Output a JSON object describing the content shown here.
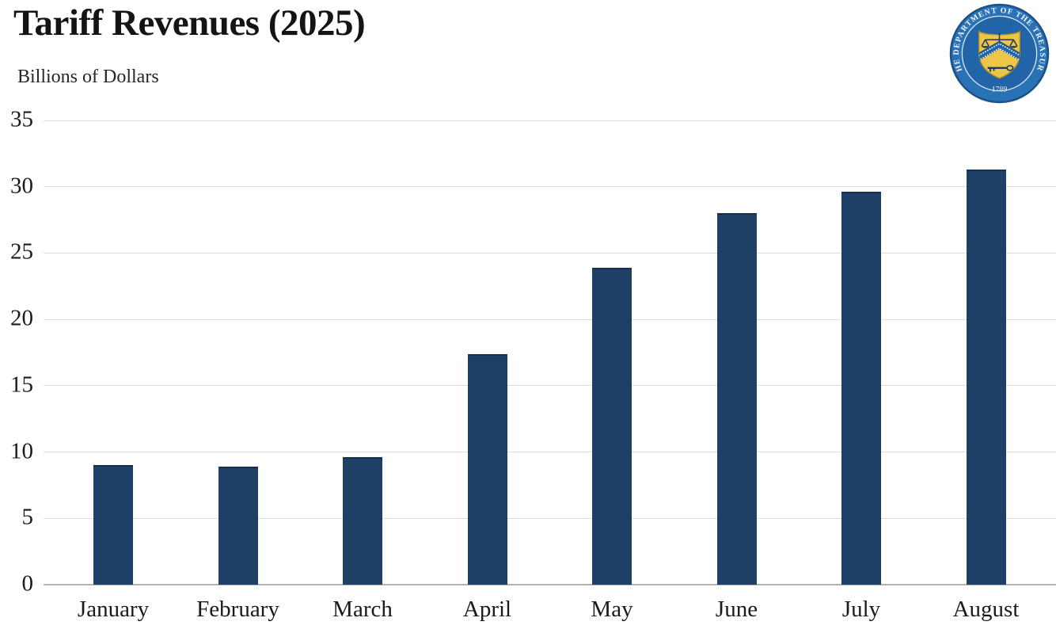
{
  "header": {
    "title": "Tariff Revenues (2025)",
    "subtitle": "Billions of Dollars"
  },
  "seal": {
    "ring_text": "THE DEPARTMENT OF THE TREASURY",
    "year": "1789",
    "colors": {
      "outer_ring": "#2a72b6",
      "inner_disc": "#2264a8",
      "ring_line": "#dce7f2",
      "text": "#f5f7fa",
      "shield_gold": "#ecc647",
      "shield_outline": "#b08f25",
      "detail_navy": "#1d3a5f",
      "chevron_blue": "#2065ae"
    }
  },
  "chart_data": {
    "type": "bar",
    "title": "Tariff Revenues (2025)",
    "ylabel": "Billions of Dollars",
    "xlabel": "",
    "categories": [
      "January",
      "February",
      "March",
      "April",
      "May",
      "June",
      "July",
      "August"
    ],
    "values": [
      9.0,
      8.9,
      9.6,
      17.4,
      23.9,
      28.0,
      29.6,
      31.3
    ],
    "units": "billions of dollars",
    "ylim": [
      0,
      35
    ],
    "yticks": [
      0,
      5,
      10,
      15,
      20,
      25,
      30,
      35
    ],
    "grid": "horizontal-only",
    "legend": "none",
    "bar_color": "#1e3f66",
    "bar_top_edge_color": "#16304f",
    "gridline_color": "#dcdcdc",
    "baseline_color": "#b3b3b3",
    "label_color": "#1a1a1a"
  }
}
